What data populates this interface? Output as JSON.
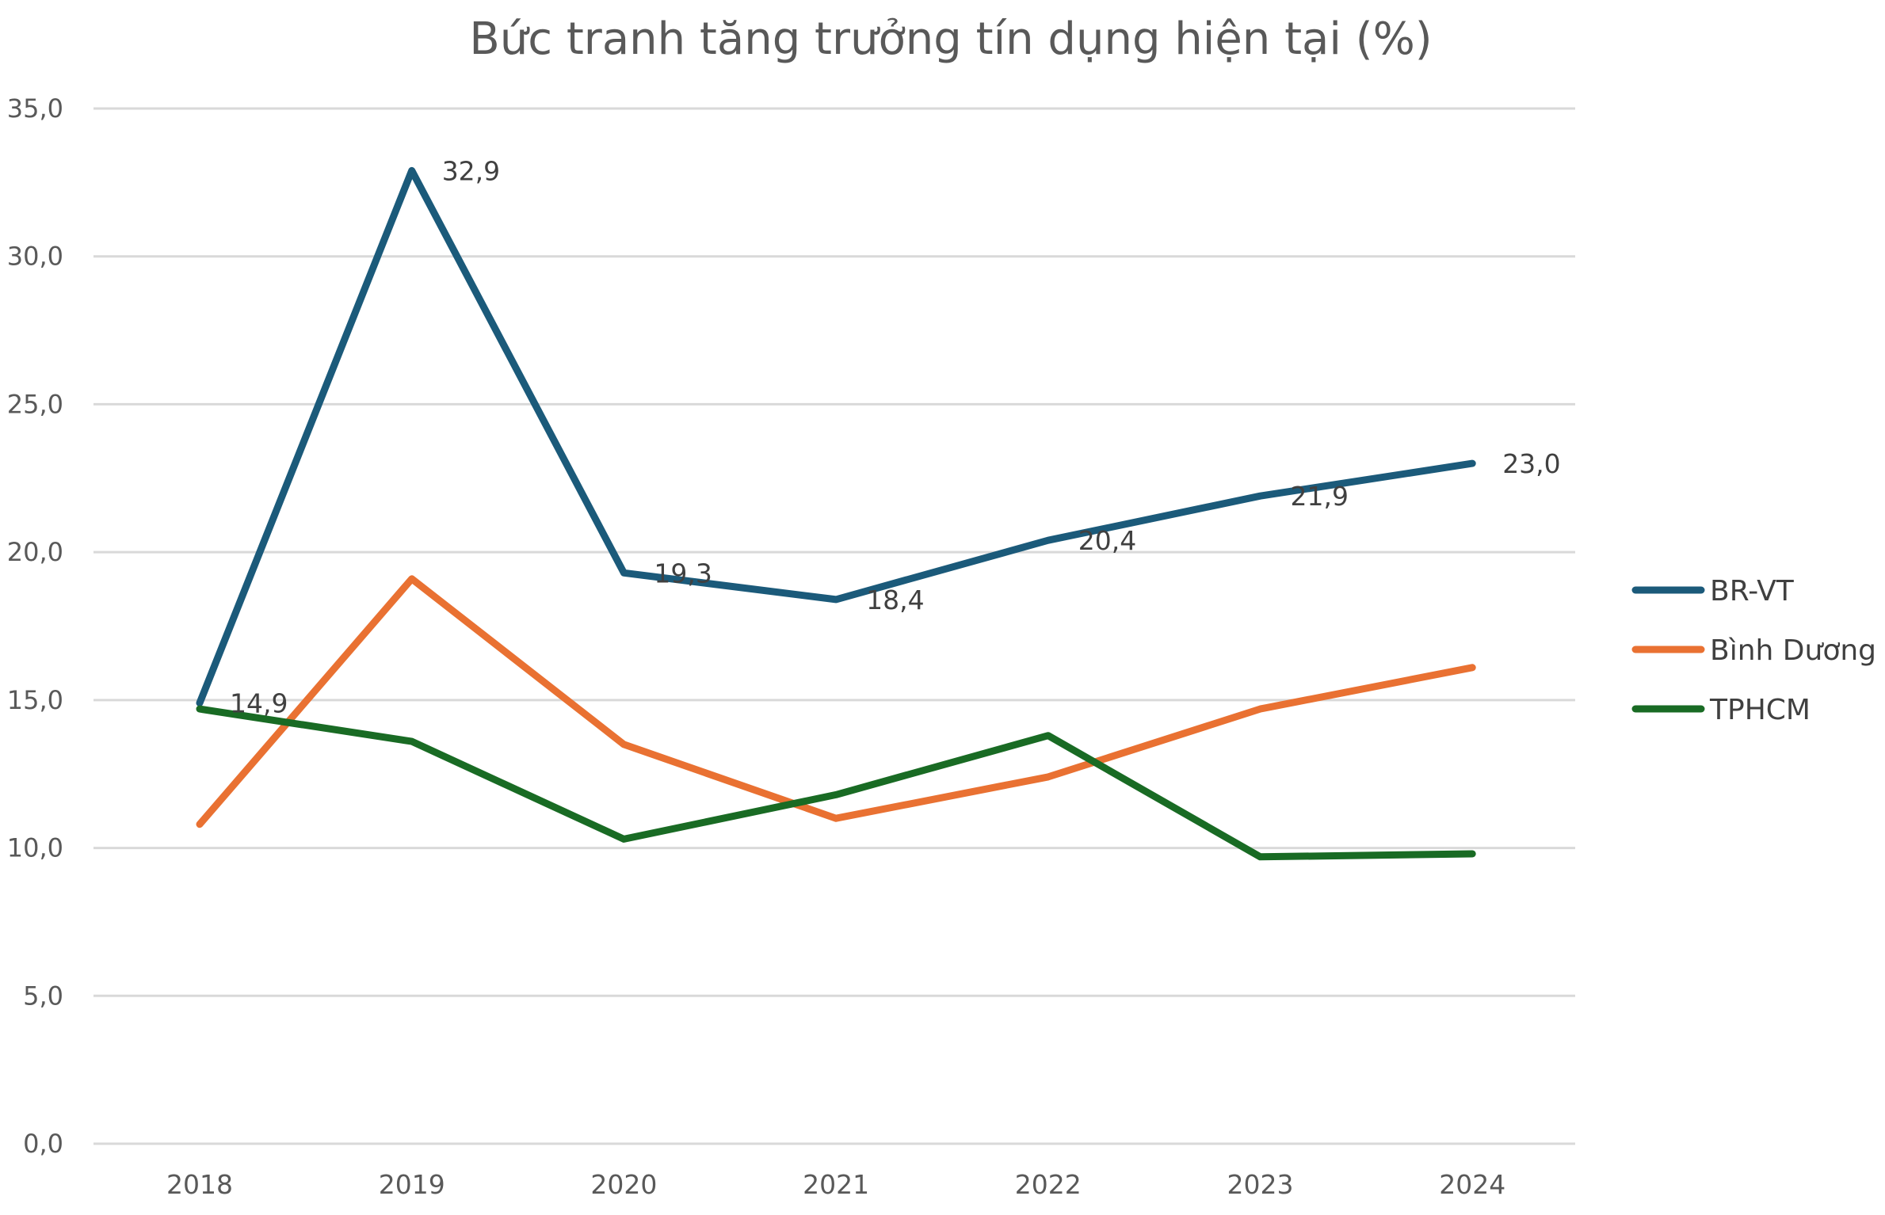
{
  "chart_data": {
    "type": "line",
    "title": "Bức tranh tăng trưởng tín dụng hiện tại (%)",
    "xlabel": "",
    "ylabel": "",
    "categories": [
      "2018",
      "2019",
      "2020",
      "2021",
      "2022",
      "2023",
      "2024"
    ],
    "ylim": [
      0,
      35
    ],
    "yticks": [
      0,
      5,
      10,
      15,
      20,
      25,
      30,
      35
    ],
    "ytick_labels": [
      "0,0",
      "5,0",
      "10,0",
      "15,0",
      "20,0",
      "25,0",
      "30,0",
      "35,0"
    ],
    "grid": true,
    "legend_position": "right",
    "series": [
      {
        "name": "BR-VT",
        "color": "#1b5a7a",
        "values": [
          14.9,
          32.9,
          19.3,
          18.4,
          20.4,
          21.9,
          23.0
        ],
        "data_labels": [
          "14,9",
          "32,9",
          "19,3",
          "18,4",
          "20,4",
          "21,9",
          "23,0"
        ]
      },
      {
        "name": "Bình Dương",
        "color": "#e97132",
        "values": [
          10.8,
          19.1,
          13.5,
          11.0,
          12.4,
          14.7,
          16.1
        ]
      },
      {
        "name": "TPHCM",
        "color": "#196b24",
        "values": [
          14.7,
          13.6,
          10.3,
          11.8,
          13.8,
          9.7,
          9.8
        ]
      }
    ]
  }
}
